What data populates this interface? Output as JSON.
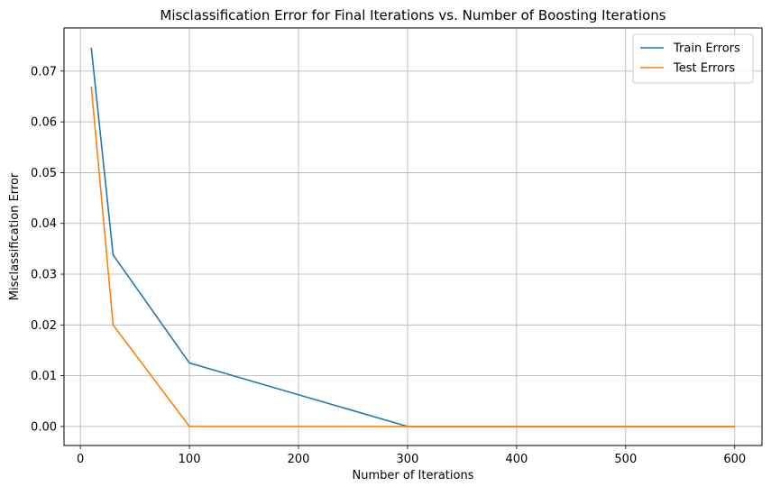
{
  "chart_data": {
    "type": "line",
    "title": "Misclassification Error for Final Iterations vs. Number of Boosting Iterations",
    "xlabel": "Number of Iterations",
    "ylabel": "Misclassification Error",
    "xlim": [
      -15,
      625
    ],
    "ylim": [
      -0.00375,
      0.0785
    ],
    "x_ticks": [
      0,
      100,
      200,
      300,
      400,
      500,
      600
    ],
    "x_tick_labels": [
      "0",
      "100",
      "200",
      "300",
      "400",
      "500",
      "600"
    ],
    "y_ticks": [
      0,
      0.01,
      0.02,
      0.03,
      0.04,
      0.05,
      0.06,
      0.07
    ],
    "y_tick_labels": [
      "0.00",
      "0.01",
      "0.02",
      "0.03",
      "0.04",
      "0.05",
      "0.06",
      "0.07"
    ],
    "grid": true,
    "legend_position": "top-right",
    "x": [
      10,
      30,
      100,
      300,
      600
    ],
    "series": [
      {
        "name": "Train Errors",
        "color": "#1f77b4",
        "values": [
          0.0746,
          0.0338,
          0.0125,
          0.0,
          0.0
        ]
      },
      {
        "name": "Test Errors",
        "color": "#ff7f0e",
        "values": [
          0.067,
          0.02,
          0.0,
          0.0,
          0.0
        ]
      }
    ]
  }
}
